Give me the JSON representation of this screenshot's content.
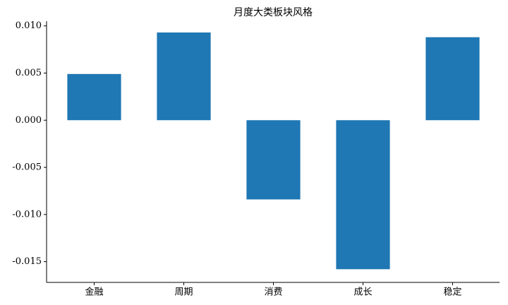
{
  "chart_data": {
    "type": "bar",
    "title": "月度大类板块风格",
    "categories": [
      "金融",
      "周期",
      "消费",
      "成长",
      "稳定"
    ],
    "values": [
      0.0049,
      0.0093,
      -0.0084,
      -0.0158,
      0.0088
    ],
    "color": "#1f77b4",
    "ylim": [
      -0.0172,
      0.0105
    ],
    "yticks": [
      {
        "value": 0.01,
        "label": "0.010"
      },
      0.005,
      {
        "value": 0,
        "label": "0.000"
      },
      -0.005,
      {
        "value": -0.01,
        "label": "-0.010"
      },
      -0.015
    ],
    "grid": false
  }
}
